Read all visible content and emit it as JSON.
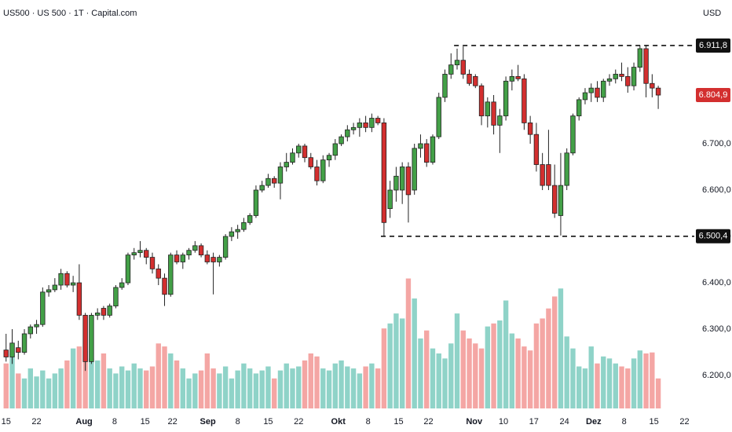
{
  "chart_data": {
    "type": "candlestick",
    "title": "US500 · US 500 · 1T · Capital.com",
    "currency": "USD",
    "up_color": "#43a047",
    "down_color": "#d32f2f",
    "volume_up_color": "#8fd3c8",
    "volume_down_color": "#f4a6a4",
    "x": [
      0,
      1,
      2,
      3,
      4,
      5,
      6,
      7,
      8,
      9,
      10,
      11,
      12,
      13,
      14,
      15,
      16,
      17,
      18,
      19,
      20,
      21,
      22,
      23,
      24,
      25,
      26,
      27,
      28,
      29,
      30,
      31,
      32,
      33,
      34,
      35,
      36,
      37,
      38,
      39,
      40,
      41,
      42,
      43,
      44,
      45,
      46,
      47,
      48,
      49,
      50,
      51,
      52,
      53,
      54,
      55,
      56,
      57,
      58,
      59,
      60,
      61,
      62,
      63,
      64,
      65,
      66,
      67,
      68,
      69,
      70,
      71,
      72,
      73,
      74,
      75,
      76,
      77,
      78,
      79,
      80,
      81,
      82,
      83,
      84,
      85,
      86,
      87,
      88,
      89,
      90,
      91,
      92,
      93,
      94,
      95,
      96,
      97,
      98,
      99,
      100,
      101,
      102,
      103,
      104,
      105,
      106,
      107
    ],
    "open": [
      6255,
      6240,
      6260,
      6250,
      6290,
      6305,
      6310,
      6380,
      6385,
      6395,
      6420,
      6395,
      6400,
      6330,
      6230,
      6330,
      6345,
      6330,
      6350,
      6390,
      6400,
      6460,
      6465,
      6470,
      6455,
      6430,
      6410,
      6375,
      6460,
      6445,
      6460,
      6470,
      6480,
      6460,
      6455,
      6445,
      6455,
      6500,
      6510,
      6515,
      6530,
      6545,
      6600,
      6610,
      6625,
      6615,
      6650,
      6660,
      6680,
      6695,
      6670,
      6650,
      6620,
      6665,
      6675,
      6700,
      6715,
      6730,
      6735,
      6745,
      6735,
      6755,
      6745,
      6560,
      6600,
      6600,
      6650,
      6600,
      6690,
      6700,
      6660,
      6715,
      6800,
      6850,
      6870,
      6880,
      6850,
      6845,
      6825,
      6760,
      6790,
      6740,
      6760,
      6835,
      6845,
      6840,
      6745,
      6720,
      6655,
      6655,
      6610,
      6545,
      6610,
      6680,
      6760,
      6795,
      6810,
      6820,
      6800,
      6835,
      6840,
      6850,
      6845,
      6825,
      6865,
      6905,
      6830,
      6820
    ],
    "high": [
      6290,
      6300,
      6275,
      6300,
      6310,
      6320,
      6390,
      6395,
      6410,
      6430,
      6425,
      6415,
      6440,
      6335,
      6335,
      6345,
      6350,
      6355,
      6395,
      6410,
      6465,
      6475,
      6490,
      6475,
      6465,
      6440,
      6420,
      6465,
      6470,
      6465,
      6475,
      6490,
      6485,
      6470,
      6465,
      6460,
      6505,
      6520,
      6525,
      6540,
      6550,
      6610,
      6620,
      6635,
      6630,
      6660,
      6680,
      6690,
      6700,
      6700,
      6680,
      6665,
      6675,
      6680,
      6710,
      6720,
      6740,
      6745,
      6755,
      6760,
      6765,
      6760,
      6755,
      6620,
      6650,
      6660,
      6660,
      6700,
      6720,
      6710,
      6720,
      6810,
      6860,
      6895,
      6905,
      6910,
      6860,
      6850,
      6830,
      6800,
      6805,
      6775,
      6845,
      6860,
      6870,
      6850,
      6760,
      6745,
      6680,
      6730,
      6655,
      6680,
      6690,
      6765,
      6800,
      6820,
      6830,
      6835,
      6840,
      6850,
      6860,
      6875,
      6865,
      6875,
      6911.8,
      6912,
      6850,
      6825
    ],
    "low": [
      6230,
      6225,
      6235,
      6245,
      6280,
      6290,
      6305,
      6370,
      6380,
      6385,
      6390,
      6380,
      6320,
      6210,
      6225,
      6320,
      6320,
      6325,
      6345,
      6385,
      6395,
      6450,
      6455,
      6440,
      6420,
      6395,
      6350,
      6370,
      6440,
      6430,
      6450,
      6465,
      6455,
      6440,
      6375,
      6435,
      6450,
      6490,
      6495,
      6510,
      6525,
      6540,
      6595,
      6605,
      6605,
      6580,
      6640,
      6655,
      6670,
      6660,
      6645,
      6610,
      6615,
      6650,
      6665,
      6695,
      6705,
      6720,
      6715,
      6725,
      6725,
      6740,
      6500.4,
      6540,
      6575,
      6570,
      6530,
      6590,
      6670,
      6650,
      6655,
      6710,
      6790,
      6840,
      6860,
      6840,
      6825,
      6820,
      6740,
      6735,
      6720,
      6680,
      6750,
      6815,
      6835,
      6730,
      6700,
      6640,
      6600,
      6600,
      6540,
      6502,
      6600,
      6675,
      6750,
      6785,
      6790,
      6790,
      6790,
      6825,
      6830,
      6835,
      6810,
      6815,
      6855,
      6800,
      6800,
      6775
    ],
    "close": [
      6240,
      6270,
      6250,
      6290,
      6305,
      6310,
      6380,
      6385,
      6395,
      6420,
      6395,
      6400,
      6330,
      6230,
      6330,
      6335,
      6330,
      6350,
      6390,
      6400,
      6460,
      6465,
      6470,
      6455,
      6430,
      6410,
      6375,
      6460,
      6445,
      6460,
      6470,
      6480,
      6460,
      6445,
      6445,
      6455,
      6500,
      6510,
      6515,
      6530,
      6545,
      6600,
      6610,
      6625,
      6615,
      6650,
      6660,
      6680,
      6695,
      6670,
      6650,
      6620,
      6665,
      6675,
      6700,
      6715,
      6730,
      6735,
      6745,
      6735,
      6755,
      6745,
      6530,
      6600,
      6630,
      6650,
      6590,
      6690,
      6700,
      6660,
      6715,
      6800,
      6850,
      6870,
      6880,
      6850,
      6830,
      6825,
      6760,
      6790,
      6740,
      6760,
      6835,
      6845,
      6840,
      6745,
      6720,
      6655,
      6610,
      6610,
      6550,
      6610,
      6680,
      6760,
      6795,
      6810,
      6820,
      6800,
      6835,
      6840,
      6850,
      6845,
      6825,
      6865,
      6905,
      6830,
      6820,
      6804.9
    ],
    "volume": [
      45,
      55,
      35,
      30,
      40,
      32,
      38,
      30,
      35,
      40,
      48,
      60,
      62,
      58,
      50,
      48,
      55,
      40,
      35,
      42,
      38,
      45,
      40,
      38,
      42,
      65,
      62,
      55,
      48,
      40,
      30,
      35,
      38,
      55,
      40,
      35,
      42,
      30,
      38,
      45,
      40,
      35,
      38,
      42,
      30,
      38,
      45,
      40,
      42,
      48,
      55,
      52,
      40,
      38,
      45,
      48,
      42,
      40,
      35,
      42,
      45,
      40,
      80,
      85,
      95,
      90,
      130,
      110,
      70,
      78,
      60,
      55,
      50,
      65,
      95,
      78,
      70,
      65,
      60,
      82,
      85,
      88,
      108,
      75,
      70,
      62,
      58,
      85,
      90,
      100,
      112,
      120,
      72,
      60,
      42,
      40,
      62,
      45,
      52,
      50,
      45,
      42,
      40,
      50,
      58,
      55,
      56,
      30
    ],
    "xlim": [
      -1,
      112.4
    ],
    "ylim": [
      6129,
      7010
    ],
    "volume_lim": [
      0,
      110
    ],
    "xticks": [
      {
        "value": 0,
        "label": "15"
      },
      {
        "value": 5,
        "label": "22"
      },
      {
        "value": 12.8,
        "label": "Aug"
      },
      {
        "value": 17.8,
        "label": "8"
      },
      {
        "value": 22.8,
        "label": "15"
      },
      {
        "value": 27.3,
        "label": "22"
      },
      {
        "value": 33.1,
        "label": "Sep"
      },
      {
        "value": 38,
        "label": "8"
      },
      {
        "value": 43,
        "label": "15"
      },
      {
        "value": 48,
        "label": "22"
      },
      {
        "value": 54.5,
        "label": "Okt"
      },
      {
        "value": 59.4,
        "label": "8"
      },
      {
        "value": 64.4,
        "label": "15"
      },
      {
        "value": 69.3,
        "label": "22"
      },
      {
        "value": 76.8,
        "label": "Nov"
      },
      {
        "value": 81.6,
        "label": "10"
      },
      {
        "value": 86.6,
        "label": "17"
      },
      {
        "value": 91.6,
        "label": "24"
      },
      {
        "value": 96.4,
        "label": "Dez"
      },
      {
        "value": 101.4,
        "label": "8"
      },
      {
        "value": 106.3,
        "label": "15"
      },
      {
        "value": 111.3,
        "label": "22"
      }
    ],
    "yticks": [
      {
        "value": 6200,
        "label": "6.200,0"
      },
      {
        "value": 6300,
        "label": "6.300,0"
      },
      {
        "value": 6400,
        "label": "6.400,0"
      },
      {
        "value": 6500,
        "label": "6.500,0"
      },
      {
        "value": 6600,
        "label": "6.600,0"
      },
      {
        "value": 6700,
        "label": "6.700,0"
      }
    ],
    "levels": [
      {
        "value": 6911.8,
        "label": "6.911,8",
        "x_start": 73.5
      },
      {
        "value": 6500.4,
        "label": "6.500,4",
        "x_start": 61.5
      }
    ],
    "last_price": {
      "value": 6804.9,
      "label": "6.804,9"
    }
  }
}
